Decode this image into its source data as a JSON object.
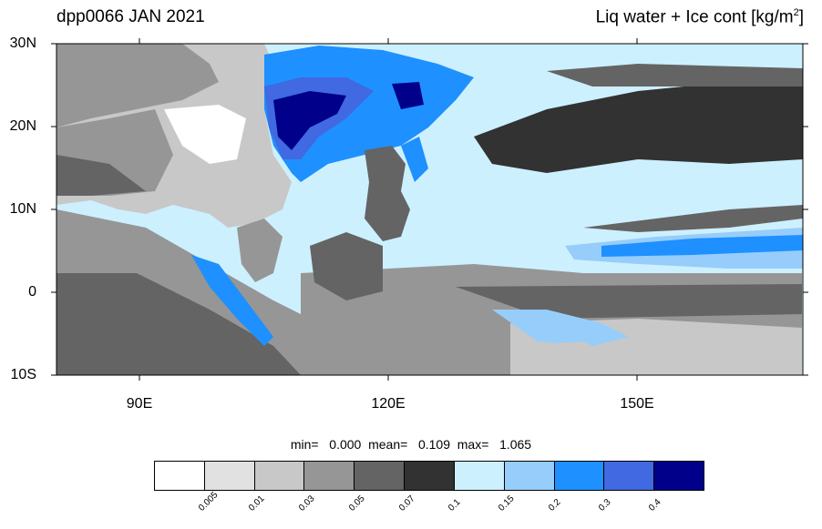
{
  "title": {
    "left": "dpp0066 JAN 2021",
    "right_main": "Liq water + Ice cont [kg/m",
    "right_sup": "2",
    "right_end": "]"
  },
  "map": {
    "lon_range": [
      80,
      170
    ],
    "lat_range": [
      -10,
      30
    ],
    "lat_labels": [
      "30N",
      "20N",
      "10N",
      "0",
      "10S"
    ],
    "lon_labels": [
      "90E",
      "120E",
      "150E"
    ],
    "land_color": "#ffffff",
    "coastline_color": "#555555"
  },
  "stats": {
    "text": "min=   0.000  mean=   0.109  max=   1.065"
  },
  "colorbar": {
    "colors": [
      "#ffffff",
      "#e1e1e1",
      "#c8c8c8",
      "#969696",
      "#646464",
      "#323232",
      "#cdf0ff",
      "#96cdfa",
      "#1e90ff",
      "#4169e1",
      "#00008b"
    ],
    "labels": [
      "0.005",
      "0.01",
      "0.03",
      "0.05",
      "0.07",
      "0.1",
      "0.15",
      "0.2",
      "0.3",
      "0.4"
    ]
  }
}
